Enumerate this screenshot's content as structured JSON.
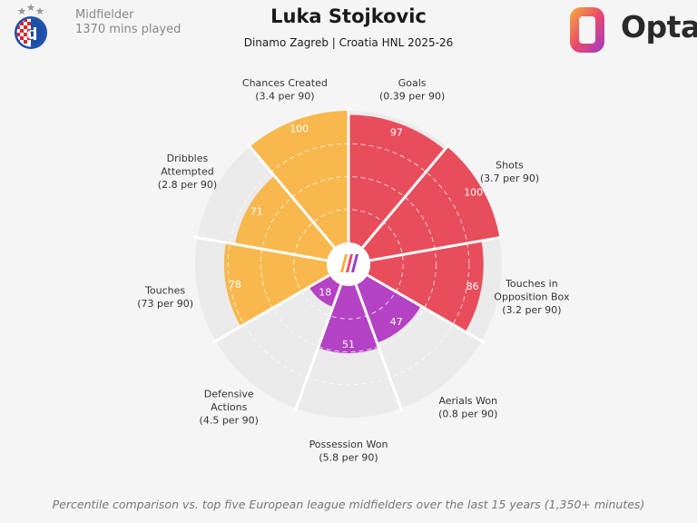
{
  "header": {
    "position": "Midfielder",
    "minutes": "1370 mins played",
    "player_name": "Luka Stojkovic",
    "subtitle": "Dinamo Zagreb | Croatia HNL 2025-26",
    "brand": "Opta"
  },
  "footer": {
    "note": "Percentile comparison vs. top five European league midfielders over the last 15 years (1,350+ minutes)"
  },
  "colors": {
    "attacking": "#e84d5b",
    "possession": "#f8b84e",
    "defending": "#b442c4",
    "ring": "#ebebeb",
    "background": "#f5f5f5"
  },
  "chart_data": {
    "type": "radar",
    "scale": [
      0,
      100
    ],
    "grid": true,
    "metrics": [
      {
        "label": [
          "Goals",
          "(0.39 per 90)"
        ],
        "value": 97,
        "group": "attacking"
      },
      {
        "label": [
          "Shots",
          "(3.7 per 90)"
        ],
        "value": 100,
        "group": "attacking"
      },
      {
        "label": [
          "Touches in",
          "Opposition Box",
          "(3.2 per 90)"
        ],
        "value": 86,
        "group": "attacking"
      },
      {
        "label": [
          "Aerials Won",
          "(0.8 per 90)"
        ],
        "value": 47,
        "group": "defending"
      },
      {
        "label": [
          "Possession Won",
          "(5.8 per 90)"
        ],
        "value": 51,
        "group": "defending"
      },
      {
        "label": [
          "Defensive",
          "Actions",
          "(4.5 per 90)"
        ],
        "value": 18,
        "group": "defending"
      },
      {
        "label": [
          "Touches",
          "(73 per 90)"
        ],
        "value": 78,
        "group": "possession"
      },
      {
        "label": [
          "Dribbles",
          "Attempted",
          "(2.8 per 90)"
        ],
        "value": 71,
        "group": "possession"
      },
      {
        "label": [
          "Chances Created",
          "(3.4 per 90)"
        ],
        "value": 100,
        "group": "possession"
      }
    ]
  }
}
